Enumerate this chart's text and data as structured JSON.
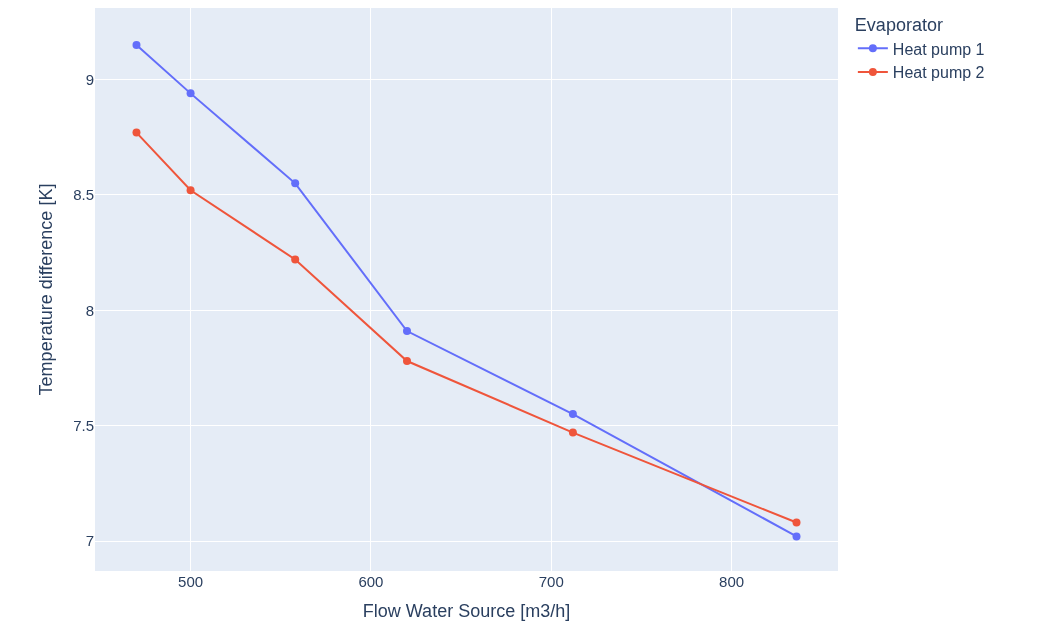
{
  "chart_data": {
    "type": "line",
    "xlabel": "Flow Water Source [m3/h]",
    "ylabel": "Temperature difference [K]",
    "legend_title": "Evaporator",
    "x": [
      470,
      500,
      558,
      620,
      712,
      836
    ],
    "series": [
      {
        "name": "Heat pump 1",
        "color": "#636efa",
        "values": [
          9.15,
          8.94,
          8.55,
          7.91,
          7.55,
          7.02
        ]
      },
      {
        "name": "Heat pump 2",
        "color": "#ef553b",
        "values": [
          8.77,
          8.52,
          8.22,
          7.78,
          7.47,
          7.08
        ]
      }
    ],
    "xlim": [
      447,
      859
    ],
    "xticks": [
      500,
      600,
      700,
      800
    ],
    "ylim": [
      6.87,
      9.31
    ],
    "yticks": [
      7,
      7.5,
      8,
      8.5,
      9
    ],
    "grid": true,
    "legend": "top right",
    "marker": "circle",
    "line_style": "solid"
  }
}
